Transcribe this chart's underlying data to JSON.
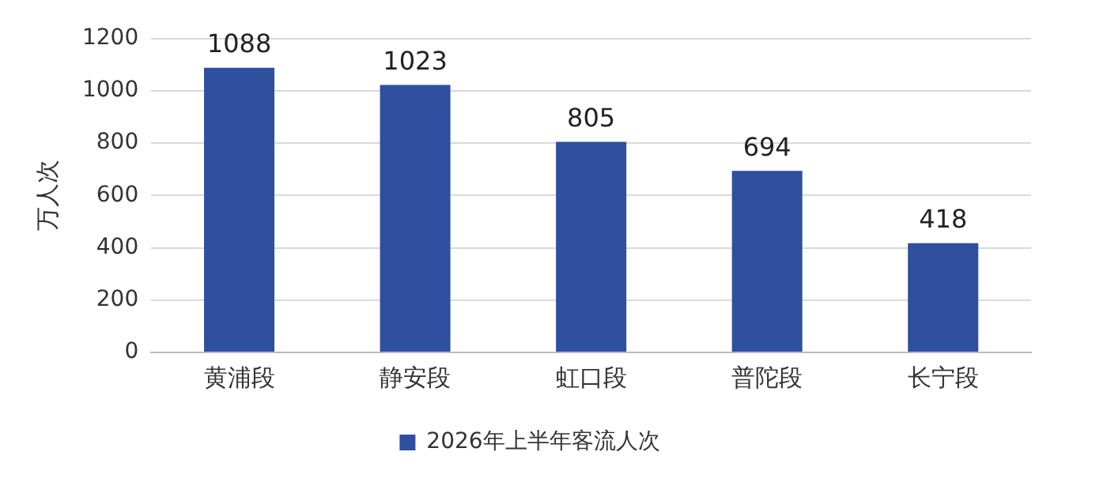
{
  "chart_data": {
    "type": "bar",
    "ylabel": "万人次",
    "categories": [
      "黄浦段",
      "静安段",
      "虹口段",
      "普陀段",
      "长宁段"
    ],
    "series": [
      {
        "name": "2026年上半年客流人次",
        "color": "#2f4f9f",
        "values": [
          1088,
          1023,
          805,
          694,
          418
        ]
      }
    ],
    "ylim": [
      0,
      1200
    ],
    "yticks": [
      0,
      200,
      400,
      600,
      800,
      1000,
      1200
    ],
    "grid": "y",
    "legend": "bottom",
    "data_labels": true
  }
}
